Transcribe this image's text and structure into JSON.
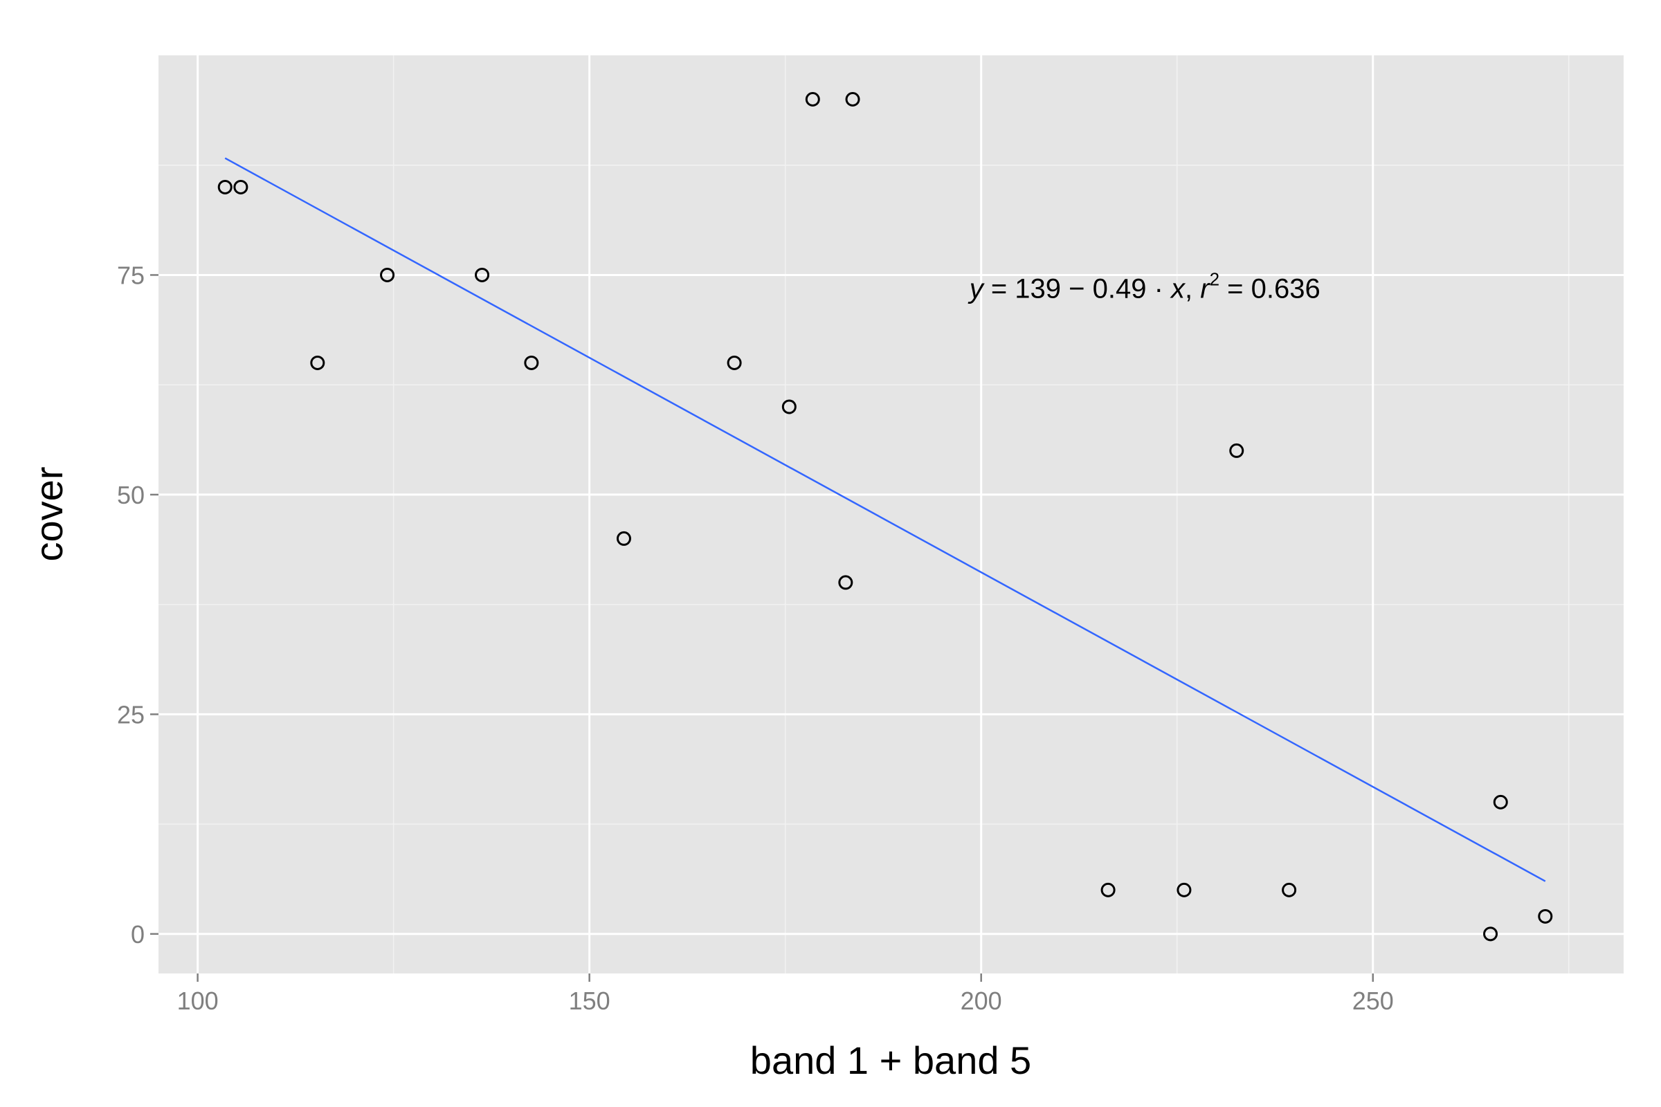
{
  "chart_data": {
    "type": "scatter",
    "xlabel": "band 1 + band 5",
    "ylabel": "cover",
    "xlim": [
      95,
      282
    ],
    "ylim": [
      -4.5,
      100
    ],
    "x_ticks": [
      100,
      150,
      200,
      250
    ],
    "x_minor_ticks": [
      125,
      175,
      225,
      275
    ],
    "y_ticks": [
      0,
      25,
      50,
      75
    ],
    "y_minor_ticks": [
      12.5,
      37.5,
      62.5,
      87.5
    ],
    "grid": true,
    "background_color": "#e5e5e5",
    "point_stroke_color": "#000000",
    "line_color": "#3366ff",
    "points": [
      {
        "x": 103.5,
        "y": 85
      },
      {
        "x": 105.5,
        "y": 85
      },
      {
        "x": 115.3,
        "y": 65
      },
      {
        "x": 124.2,
        "y": 75
      },
      {
        "x": 136.3,
        "y": 75
      },
      {
        "x": 142.6,
        "y": 65
      },
      {
        "x": 154.4,
        "y": 45
      },
      {
        "x": 168.5,
        "y": 65
      },
      {
        "x": 175.5,
        "y": 60
      },
      {
        "x": 178.5,
        "y": 95
      },
      {
        "x": 182.7,
        "y": 40
      },
      {
        "x": 183.6,
        "y": 95
      },
      {
        "x": 216.2,
        "y": 5
      },
      {
        "x": 225.9,
        "y": 5
      },
      {
        "x": 232.6,
        "y": 55
      },
      {
        "x": 239.3,
        "y": 5
      },
      {
        "x": 265.0,
        "y": 0
      },
      {
        "x": 266.3,
        "y": 15
      },
      {
        "x": 272.0,
        "y": 2
      }
    ],
    "fit_line": {
      "x": [
        103.5,
        272.0
      ],
      "y": [
        88.3,
        6.0
      ]
    },
    "annotation": {
      "y_sym": "y",
      "eq_middle": " = 139 − 0.49 · ",
      "x_sym": "x",
      "comma": ",  ",
      "r_sym": "r",
      "sup": "2",
      "r_value": " = 0.636",
      "anchor_x": 198.5,
      "anchor_y": 73.5
    }
  }
}
